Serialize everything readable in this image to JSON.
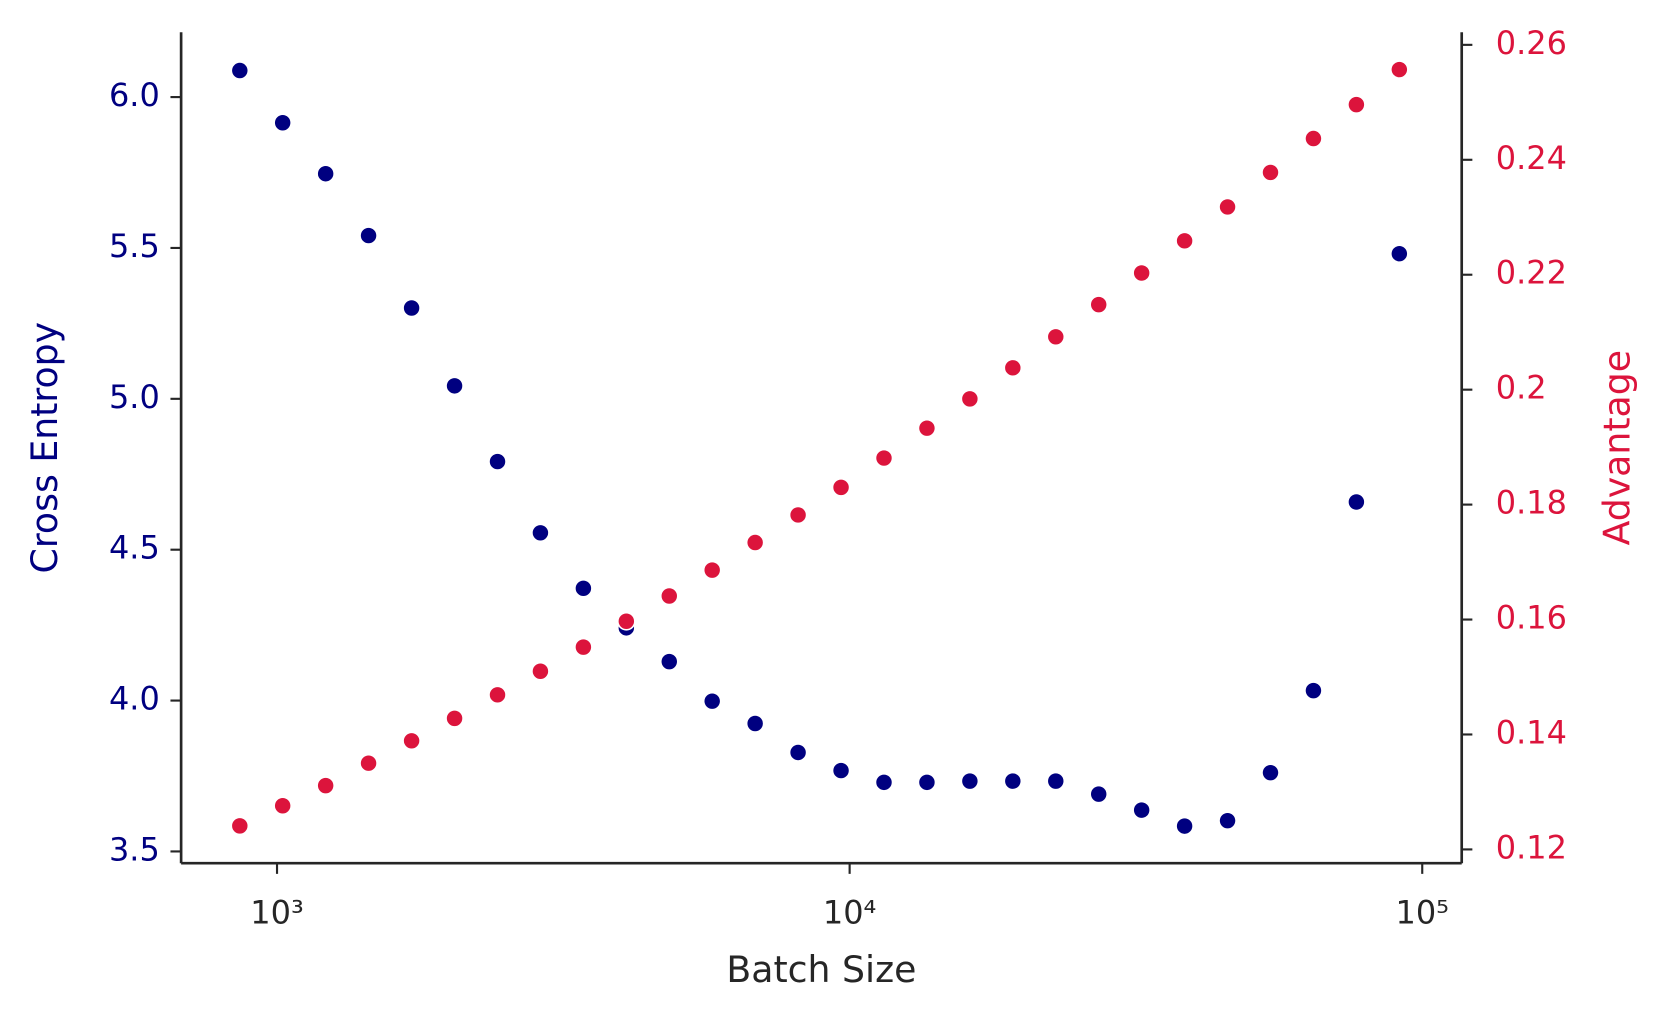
{
  "chart_data": {
    "type": "scatter",
    "x_label": "Batch Size",
    "y_label": "Cross Entropy",
    "y2_label": "Advantage",
    "x_log": true,
    "grid": false,
    "x": [
      861,
      1023,
      1216,
      1445,
      1718,
      2042,
      2427,
      2884,
      3428,
      4074,
      4842,
      5754,
      6839,
      8128,
      9661,
      11482,
      13646,
      16218,
      19275,
      22909,
      27227,
      32359,
      38459,
      45709,
      54325,
      64565,
      76736,
      91201
    ],
    "series": [
      {
        "name": "Cross Entropy",
        "color": "#000080",
        "axis": "y",
        "values": [
          6.088,
          5.915,
          5.746,
          5.541,
          5.301,
          5.043,
          4.792,
          4.556,
          4.372,
          4.241,
          4.129,
          3.998,
          3.924,
          3.828,
          3.768,
          3.729,
          3.729,
          3.733,
          3.733,
          3.733,
          3.69,
          3.637,
          3.584,
          3.602,
          3.761,
          4.033,
          4.658,
          5.481
        ]
      },
      {
        "name": "Advantage",
        "color": "#dc143c",
        "axis": "y2",
        "values": [
          0.1241,
          0.1276,
          0.1311,
          0.135,
          0.1389,
          0.1428,
          0.1469,
          0.151,
          0.1552,
          0.1597,
          0.1641,
          0.1686,
          0.1734,
          0.1782,
          0.183,
          0.1881,
          0.1933,
          0.1984,
          0.2038,
          0.2092,
          0.2148,
          0.2203,
          0.2259,
          0.2318,
          0.2378,
          0.2437,
          0.2496,
          0.2557
        ]
      }
    ],
    "xlim": [
      680,
      117200
    ],
    "xticks": [
      {
        "value": 1000,
        "label": "10³"
      },
      {
        "value": 10000,
        "label": "10⁴"
      },
      {
        "value": 100000,
        "label": "10⁵"
      }
    ],
    "ylim": [
      3.461,
      6.215
    ],
    "yticks": [
      {
        "value": 3.5,
        "label": "3.5"
      },
      {
        "value": 4.0,
        "label": "4.0"
      },
      {
        "value": 4.5,
        "label": "4.5"
      },
      {
        "value": 5.0,
        "label": "5.0"
      },
      {
        "value": 5.5,
        "label": "5.5"
      },
      {
        "value": 6.0,
        "label": "6.0"
      }
    ],
    "y2lim": [
      0.1176,
      0.2622
    ],
    "y2ticks": [
      0.12,
      0.14,
      0.16,
      0.18,
      0.2,
      0.22,
      0.24,
      0.26
    ]
  }
}
